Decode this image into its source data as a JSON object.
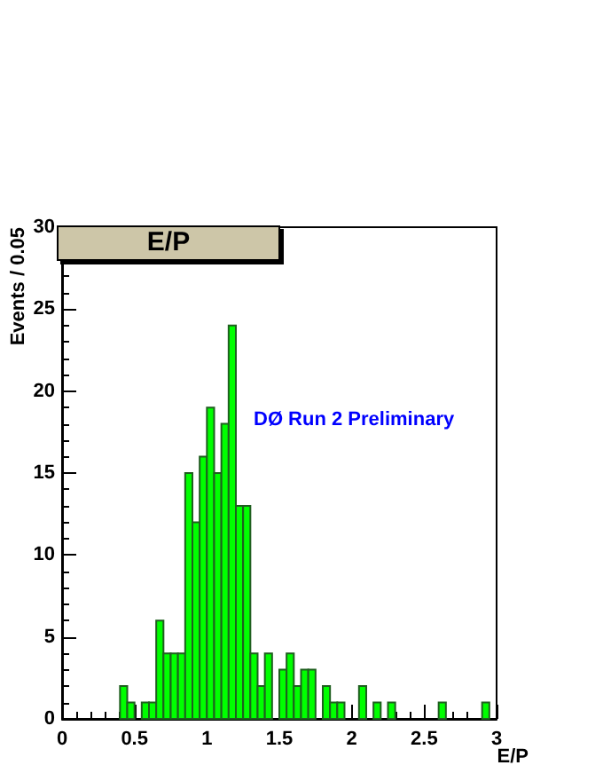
{
  "chart_data": {
    "type": "histogram",
    "title": "E/P",
    "xlabel": "E/P",
    "ylabel": "Events / 0.05",
    "annotations": [
      "DØ Run 2 Preliminary"
    ],
    "bins": [
      0,
      0.05,
      0.1,
      0.15,
      0.2,
      0.25,
      0.3,
      0.35,
      0.4,
      0.45,
      0.5,
      0.55,
      0.6,
      0.65,
      0.7,
      0.75,
      0.8,
      0.85,
      0.9,
      0.95,
      1,
      1.05,
      1.1,
      1.15,
      1.2,
      1.25,
      1.3,
      1.35,
      1.4,
      1.45,
      1.5,
      1.55,
      1.6,
      1.65,
      1.7,
      1.75,
      1.8,
      1.85,
      1.9,
      1.95,
      2,
      2.05,
      2.1,
      2.15,
      2.2,
      2.25,
      2.3,
      2.35,
      2.4,
      2.45,
      2.5,
      2.55,
      2.6,
      2.65,
      2.7,
      2.75,
      2.8,
      2.85,
      2.9,
      2.95,
      3
    ],
    "values": [
      0,
      0,
      0,
      0,
      0,
      0,
      0,
      0,
      2,
      1,
      0,
      1,
      1,
      6,
      4,
      4,
      4,
      15,
      12,
      16,
      19,
      15,
      18,
      24,
      13,
      13,
      4,
      2,
      4,
      0,
      3,
      4,
      2,
      3,
      3,
      0,
      2,
      1,
      1,
      0,
      0,
      2,
      0,
      1,
      0,
      1,
      0,
      0,
      0,
      0,
      0,
      0,
      1,
      0,
      0,
      0,
      0,
      0,
      1,
      0
    ],
    "color": "#00ff00",
    "xlim": [
      0,
      3
    ],
    "xticks": [
      0,
      0.5,
      1,
      1.5,
      2,
      2.5,
      3
    ],
    "ylim": [
      0,
      30
    ],
    "yticks": [
      0,
      5,
      10,
      15,
      20,
      25,
      30
    ],
    "grid": false
  }
}
